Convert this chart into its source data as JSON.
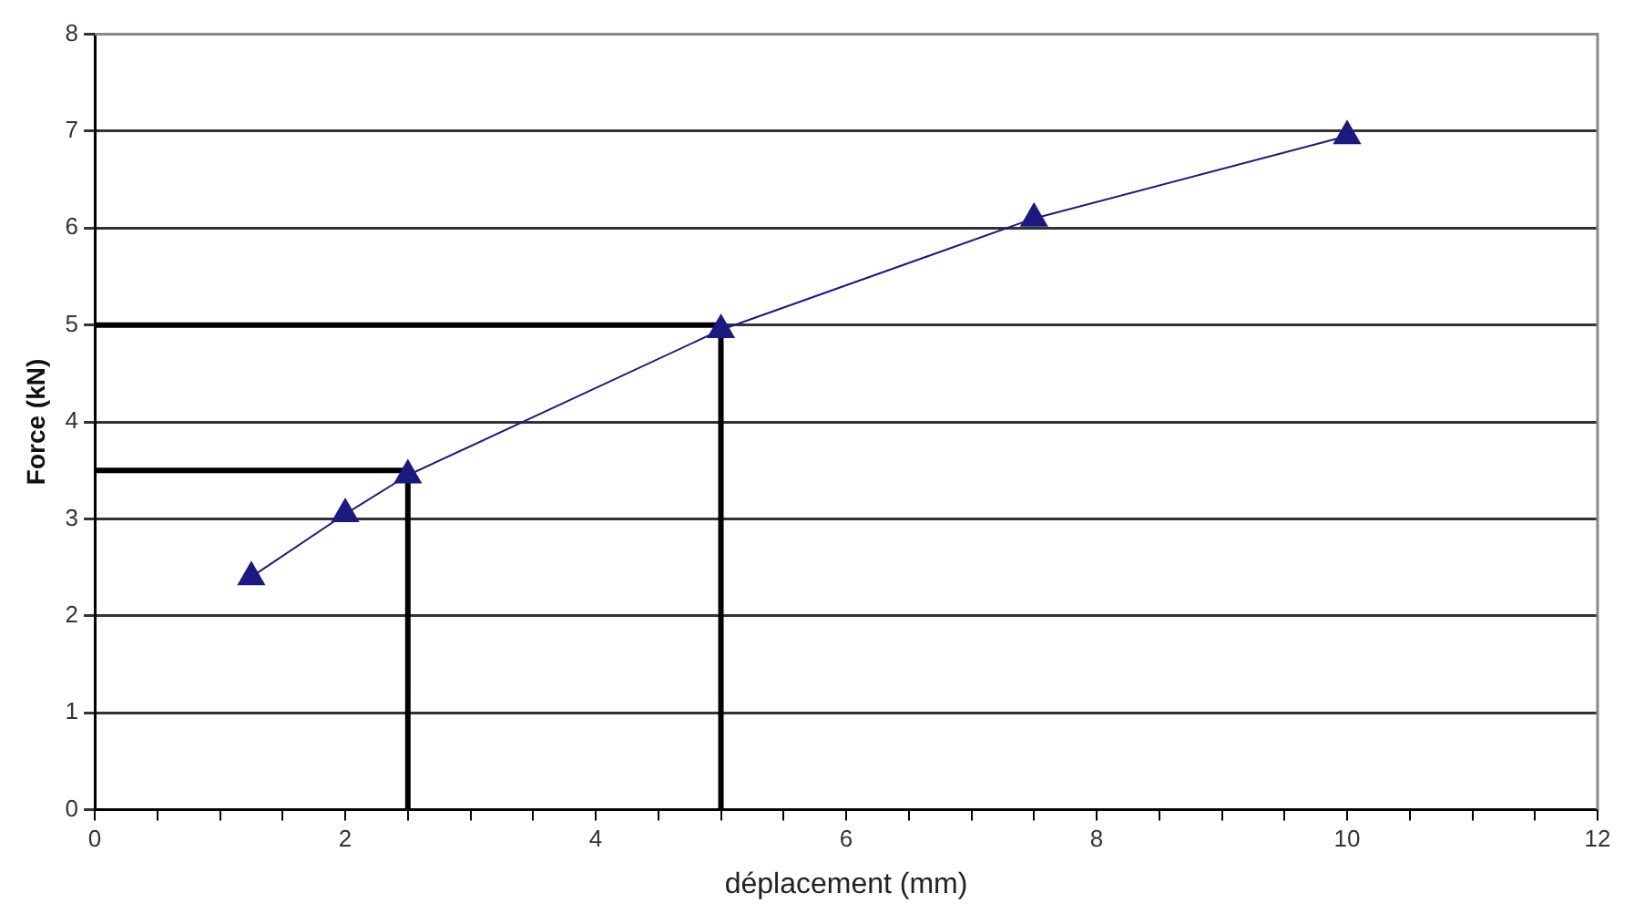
{
  "chart_data": {
    "type": "line",
    "xlabel": "déplacement (mm)",
    "ylabel": "Force (kN)",
    "series": [
      {
        "color": "#1a1a80",
        "x": [
          1.25,
          2,
          2.5,
          5,
          7.5,
          10
        ],
        "values": [
          2.4,
          3.05,
          3.45,
          4.95,
          6.1,
          6.95
        ],
        "marker": "triangle"
      },
      {
        "color": "#000000",
        "x": [
          0,
          2.5,
          2.5
        ],
        "values": [
          3.5,
          3.5,
          0
        ],
        "marker": "none"
      },
      {
        "color": "#000000",
        "x": [
          0,
          5,
          5
        ],
        "values": [
          5,
          5,
          0
        ],
        "marker": "none"
      }
    ],
    "xlim": [
      0,
      12
    ],
    "xticks": [
      0,
      {
        "value": 0.5,
        "label": null
      },
      {
        "value": 1,
        "label": null
      },
      {
        "value": 1.5,
        "label": null
      },
      2,
      {
        "value": 2.5,
        "label": null
      },
      {
        "value": 3,
        "label": null
      },
      {
        "value": 3.5,
        "label": null
      },
      4,
      {
        "value": 4.5,
        "label": null
      },
      {
        "value": 5,
        "label": null
      },
      {
        "value": 5.5,
        "label": null
      },
      6,
      {
        "value": 6.5,
        "label": null
      },
      {
        "value": 7,
        "label": null
      },
      {
        "value": 7.5,
        "label": null
      },
      8,
      {
        "value": 8.5,
        "label": null
      },
      {
        "value": 9,
        "label": null
      },
      {
        "value": 9.5,
        "label": null
      },
      10,
      {
        "value": 10.5,
        "label": null
      },
      {
        "value": 11,
        "label": null
      },
      {
        "value": 11.5,
        "label": null
      },
      12
    ],
    "ylim": [
      0,
      8
    ],
    "yticks": [
      0,
      1,
      2,
      3,
      4,
      5,
      6,
      7,
      8
    ],
    "grid": "y",
    "legend": false
  }
}
